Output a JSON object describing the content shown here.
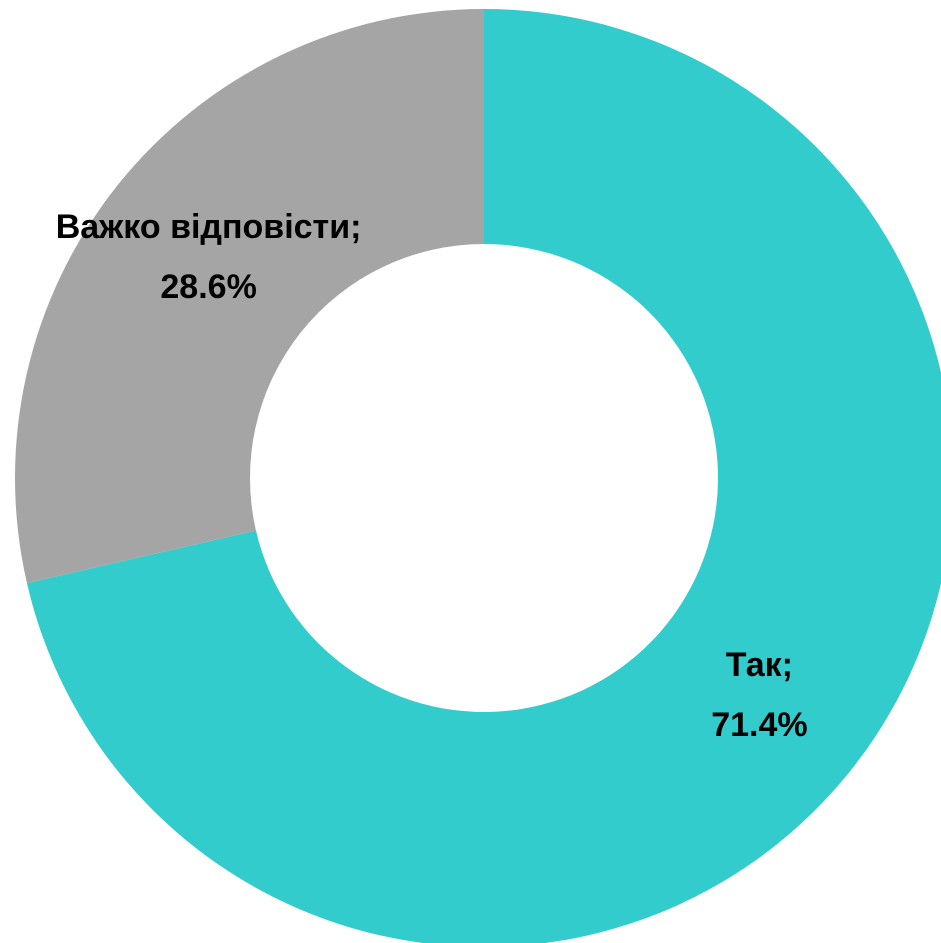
{
  "chart_data": {
    "type": "donut",
    "categories": [
      "Так",
      "Важко відповісти"
    ],
    "values": [
      71.4,
      28.6
    ],
    "value_labels": [
      "71.4%",
      "28.6%"
    ],
    "label_separator": ";",
    "colors": [
      "#33CCCC",
      "#A5A5A5"
    ]
  }
}
